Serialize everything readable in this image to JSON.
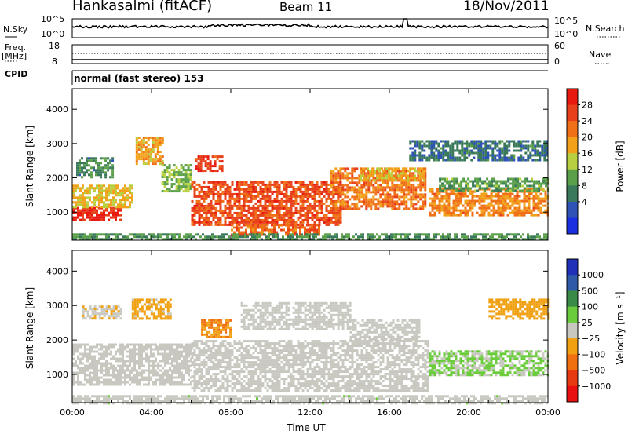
{
  "header": {
    "station": "Hankasalmi (fitACF)",
    "beam": "Beam 11",
    "date": "18/Nov/2011"
  },
  "noise_panel": {
    "left_label": "N.Sky",
    "left_ticks": [
      "10^5",
      "10^0"
    ],
    "right_ticks": [
      "10^5",
      "10^0"
    ],
    "right_label": "N.Search"
  },
  "freq_panel": {
    "left_label_top": "Freq.",
    "left_label_unit": "[MHz]",
    "left_ticks": [
      "18",
      "8"
    ],
    "right_ticks": [
      "60",
      "0"
    ],
    "right_label": "Nave",
    "cpid_label": "CPID",
    "cpid_value": "normal (fast stereo) 153"
  },
  "colors": {
    "power": [
      "#1a2fe0",
      "#2e52b5",
      "#3a7a5a",
      "#5aa04a",
      "#b8d040",
      "#f2a21a",
      "#f07018",
      "#e8401a",
      "#e81a10"
    ],
    "velocity": [
      "#2030b8",
      "#2e5aa8",
      "#3a8a48",
      "#6acc3a",
      "#c8c8c0",
      "#f0a010",
      "#f07010",
      "#e83a10",
      "#e81010"
    ]
  },
  "chart_data": [
    {
      "type": "heatmap",
      "title": "",
      "ylabel": "Slant Range [km]",
      "xlabel": "",
      "ylim": [
        180,
        4600
      ],
      "y_ticks": [
        "1000",
        "2000",
        "3000",
        "4000"
      ],
      "x_ticks": [
        "00:00",
        "04:00",
        "08:00",
        "12:00",
        "16:00",
        "20:00",
        "00:00"
      ],
      "colorbar": {
        "label": "Power [dB]",
        "tick_labels": [
          "28",
          "24",
          "20",
          "16",
          "12",
          "8",
          "4"
        ],
        "range": [
          0,
          32
        ]
      },
      "regions": [
        {
          "t0": 0.0,
          "t1": 2.4,
          "r0": 800,
          "r1": 1150,
          "value": 29
        },
        {
          "t0": 0.0,
          "t1": 3.0,
          "r0": 1150,
          "r1": 1800,
          "value": 18
        },
        {
          "t0": 0.2,
          "t1": 2.0,
          "r0": 2000,
          "r1": 2600,
          "value": 10
        },
        {
          "t0": 3.2,
          "t1": 4.6,
          "r0": 2400,
          "r1": 3200,
          "value": 20
        },
        {
          "t0": 4.5,
          "t1": 6.0,
          "r0": 1600,
          "r1": 2400,
          "value": 14
        },
        {
          "t0": 6.2,
          "t1": 7.6,
          "r0": 2200,
          "r1": 2650,
          "value": 27
        },
        {
          "t0": 6.0,
          "t1": 13.5,
          "r0": 600,
          "r1": 1900,
          "value": 26
        },
        {
          "t0": 8.0,
          "t1": 12.5,
          "r0": 350,
          "r1": 650,
          "value": 24
        },
        {
          "t0": 13.0,
          "t1": 17.8,
          "r0": 1100,
          "r1": 2300,
          "value": 23
        },
        {
          "t0": 14.5,
          "t1": 17.8,
          "r0": 1900,
          "r1": 2300,
          "value": 19
        },
        {
          "t0": 18.0,
          "t1": 24.0,
          "r0": 900,
          "r1": 1700,
          "value": 22
        },
        {
          "t0": 18.5,
          "t1": 24.0,
          "r0": 1600,
          "r1": 2000,
          "value": 12
        },
        {
          "t0": 17.0,
          "t1": 24.0,
          "r0": 2500,
          "r1": 3100,
          "value": 8
        },
        {
          "t0": 0.0,
          "t1": 24.0,
          "r0": 180,
          "r1": 380,
          "value": 11
        }
      ]
    },
    {
      "type": "heatmap",
      "title": "",
      "ylabel": "Slant Range [km]",
      "xlabel": "Time UT",
      "ylim": [
        180,
        4600
      ],
      "y_ticks": [
        "1000",
        "2000",
        "3000",
        "4000"
      ],
      "x_ticks": [
        "00:00",
        "04:00",
        "08:00",
        "12:00",
        "16:00",
        "20:00",
        "00:00"
      ],
      "colorbar": {
        "label": "Velocity [m s⁻¹]",
        "tick_labels": [
          "1000",
          "500",
          "100",
          "25",
          "−25",
          "−100",
          "−500",
          "−1000"
        ],
        "range": [
          -1200,
          1200
        ]
      },
      "regions": [
        {
          "t0": 0.0,
          "t1": 6.0,
          "r0": 700,
          "r1": 1900,
          "value": 0
        },
        {
          "t0": 6.0,
          "t1": 18.0,
          "r0": 500,
          "r1": 2000,
          "value": 0
        },
        {
          "t0": 18.0,
          "t1": 24.0,
          "r0": 1000,
          "r1": 1700,
          "value": 150
        },
        {
          "t0": 6.5,
          "t1": 8.0,
          "r0": 2100,
          "r1": 2600,
          "value": -400
        },
        {
          "t0": 3.0,
          "t1": 5.0,
          "r0": 2600,
          "r1": 3200,
          "value": -200
        },
        {
          "t0": 0.5,
          "t1": 2.5,
          "r0": 2600,
          "r1": 3000,
          "value": -80
        },
        {
          "t0": 8.5,
          "t1": 14.0,
          "r0": 2300,
          "r1": 3100,
          "value": 0
        },
        {
          "t0": 14.0,
          "t1": 17.5,
          "r0": 2000,
          "r1": 2600,
          "value": 0
        },
        {
          "t0": 21.0,
          "t1": 24.0,
          "r0": 2600,
          "r1": 3200,
          "value": -300
        },
        {
          "t0": 0.0,
          "t1": 24.0,
          "r0": 180,
          "r1": 400,
          "value": 60
        }
      ]
    }
  ]
}
